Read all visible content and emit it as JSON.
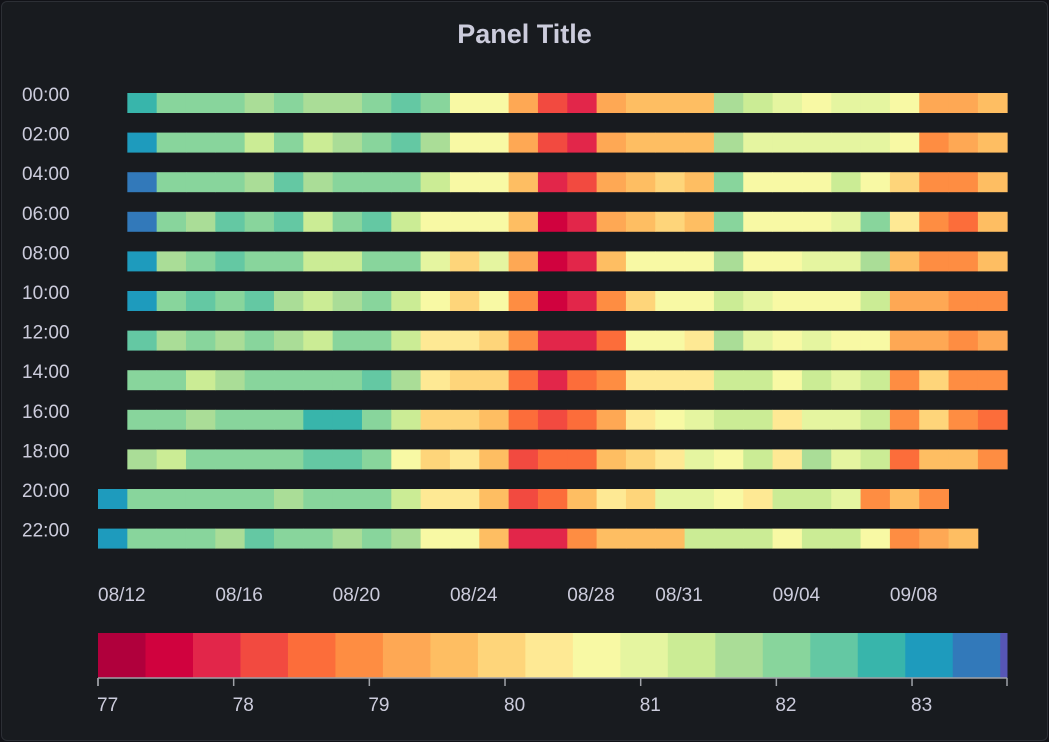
{
  "panel": {
    "title": "Panel Title"
  },
  "chart_data": {
    "type": "heatmap",
    "title": "Panel Title",
    "y_labels": [
      "00:00",
      "02:00",
      "04:00",
      "06:00",
      "08:00",
      "10:00",
      "12:00",
      "14:00",
      "16:00",
      "18:00",
      "20:00",
      "22:00"
    ],
    "x_tick_labels": [
      "08/12",
      "08/16",
      "08/20",
      "08/24",
      "08/28",
      "08/31",
      "09/04",
      "09/08"
    ],
    "x_start_date": "08/11",
    "row_day_offset": [
      1,
      1,
      1,
      1,
      1,
      1,
      1,
      1,
      1,
      1,
      0,
      0
    ],
    "cell_values": [
      [
        82.9,
        81.9,
        82.1,
        81.9,
        81.8,
        81.9,
        81.8,
        81.7,
        82.1,
        82.5,
        81.9,
        80.6,
        80.8,
        79.4,
        78.1,
        77.7,
        79.3,
        79.7,
        79.8,
        79.5,
        81.6,
        81.3,
        81.1,
        80.6,
        80.9,
        80.9,
        80.6,
        79.2,
        79.3,
        79.5
      ],
      [
        83.3,
        82.2,
        82.2,
        82.2,
        81.2,
        81.9,
        81.3,
        81.6,
        82.1,
        82.3,
        81.8,
        80.5,
        80.5,
        79.4,
        78.1,
        77.7,
        79.4,
        79.7,
        79.7,
        79.8,
        81.6,
        80.9,
        81.0,
        81.1,
        80.9,
        81.1,
        80.6,
        79.1,
        79.2,
        79.7
      ],
      [
        83.4,
        82.1,
        82.0,
        82.2,
        81.8,
        82.5,
        81.6,
        82.1,
        82.2,
        81.9,
        81.3,
        80.6,
        80.6,
        79.5,
        77.7,
        78.1,
        79.3,
        79.7,
        79.9,
        79.8,
        82.0,
        80.8,
        80.8,
        80.8,
        81.5,
        80.8,
        79.9,
        78.8,
        78.8,
        79.6
      ],
      [
        83.5,
        82.1,
        81.8,
        82.6,
        82.2,
        82.4,
        81.3,
        82.0,
        82.6,
        81.5,
        80.8,
        80.8,
        80.8,
        79.5,
        77.4,
        77.8,
        79.4,
        79.8,
        80.0,
        79.5,
        82.1,
        80.5,
        80.5,
        80.5,
        81.0,
        81.9,
        80.4,
        79.0,
        78.6,
        79.6
      ],
      [
        83.2,
        81.8,
        82.1,
        82.6,
        82.2,
        82.2,
        81.2,
        81.5,
        82.2,
        81.9,
        81.0,
        79.9,
        80.9,
        79.3,
        77.4,
        77.9,
        79.5,
        80.5,
        80.5,
        80.5,
        81.6,
        80.8,
        80.6,
        80.9,
        80.9,
        81.6,
        79.8,
        79.0,
        78.9,
        79.7
      ],
      [
        83.0,
        81.9,
        82.3,
        82.0,
        82.3,
        81.8,
        81.4,
        81.7,
        82.1,
        81.5,
        80.8,
        80.0,
        80.5,
        79.1,
        77.6,
        77.7,
        79.1,
        80.0,
        80.7,
        80.7,
        81.4,
        81.1,
        80.6,
        80.5,
        80.8,
        81.4,
        79.4,
        79.3,
        79.0,
        79.1
      ],
      [
        82.6,
        81.7,
        81.9,
        81.8,
        81.9,
        81.6,
        81.5,
        82.2,
        82.1,
        81.3,
        80.4,
        80.3,
        80.0,
        79.1,
        77.9,
        78.0,
        78.6,
        80.5,
        80.7,
        80.2,
        81.7,
        81.0,
        80.8,
        80.9,
        80.7,
        80.5,
        79.2,
        79.4,
        79.1,
        79.2
      ],
      [
        82.2,
        82.0,
        81.5,
        81.8,
        82.1,
        81.9,
        82.2,
        82.1,
        82.5,
        81.8,
        80.4,
        80.1,
        80.1,
        78.7,
        78.0,
        78.5,
        79.1,
        80.4,
        80.4,
        80.4,
        81.5,
        81.5,
        80.8,
        81.5,
        80.9,
        81.3,
        79.1,
        79.9,
        78.9,
        78.8
      ],
      [
        82.0,
        81.9,
        81.8,
        82.0,
        82.1,
        82.2,
        82.7,
        82.9,
        82.1,
        81.2,
        80.0,
        80.1,
        79.8,
        78.4,
        78.3,
        78.6,
        79.3,
        80.3,
        80.6,
        81.0,
        81.2,
        81.5,
        80.4,
        81.1,
        80.9,
        81.3,
        78.9,
        80.0,
        79.0,
        78.4
      ],
      [
        81.6,
        81.5,
        82.0,
        82.2,
        82.0,
        82.1,
        82.5,
        82.4,
        82.0,
        80.7,
        80.0,
        80.4,
        79.5,
        78.2,
        78.4,
        78.7,
        79.6,
        80.0,
        80.3,
        81.0,
        80.8,
        81.4,
        80.2,
        81.7,
        81.0,
        81.4,
        78.7,
        79.6,
        79.5,
        78.8
      ],
      [
        83.2,
        82.0,
        81.9,
        82.0,
        82.0,
        81.9,
        81.6,
        81.9,
        82.1,
        82.2,
        81.3,
        80.2,
        80.4,
        79.5,
        78.2,
        78.7,
        79.8,
        80.3,
        80.0,
        81.1,
        81.0,
        80.8,
        80.4,
        81.4,
        81.3,
        81.0,
        79.1,
        79.7,
        79.0
      ],
      [
        83.0,
        82.0,
        82.2,
        82.0,
        81.6,
        82.3,
        81.9,
        82.0,
        81.8,
        82.1,
        81.7,
        80.7,
        80.7,
        79.6,
        77.7,
        78.0,
        78.8,
        79.6,
        79.7,
        79.7,
        81.3,
        81.4,
        81.4,
        80.6,
        81.2,
        81.4,
        80.6,
        78.8,
        79.2,
        79.7
      ]
    ],
    "color_scale": {
      "min": 77,
      "max": 83.7,
      "step": 0.35,
      "colors": [
        "#b0003c",
        "#d0023e",
        "#e2264a",
        "#f24a40",
        "#fc6d3a",
        "#fe8d42",
        "#fea854",
        "#febe62",
        "#fed57a",
        "#fee994",
        "#f8f9a4",
        "#e5f5a0",
        "#cbec95",
        "#aadd97",
        "#88d59c",
        "#64c8a3",
        "#38b5ab",
        "#1e9bbd",
        "#3279ba",
        "#5756b5"
      ],
      "tick_values": [
        77,
        78,
        79,
        80,
        81,
        82,
        83
      ],
      "tick_labels": [
        "77",
        "78",
        "79",
        "80",
        "81",
        "82",
        "83"
      ]
    }
  }
}
